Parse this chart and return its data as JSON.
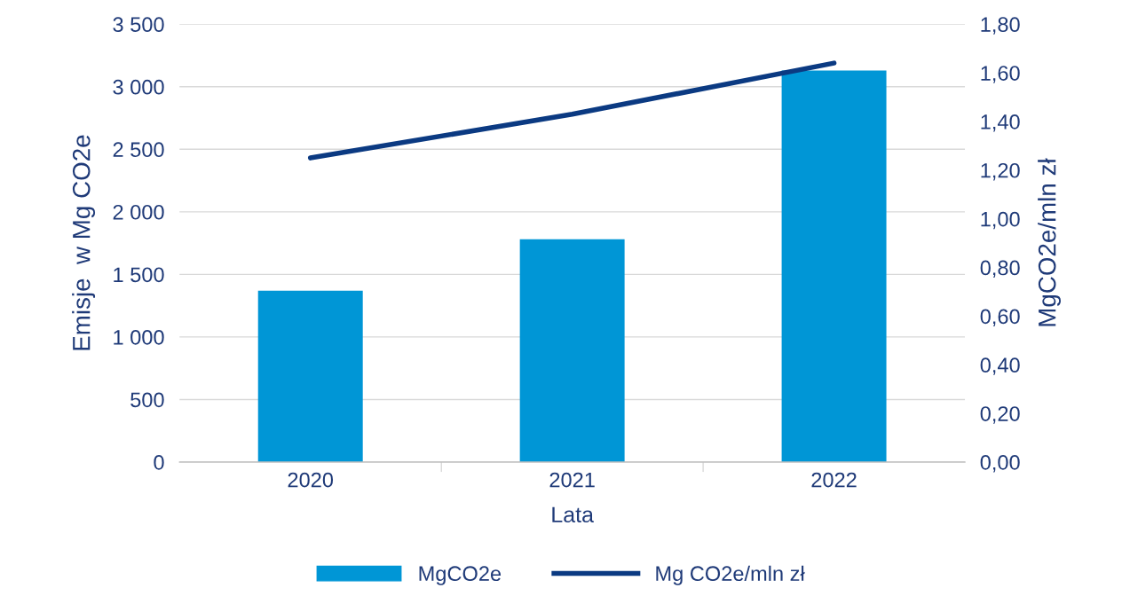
{
  "chart_data": {
    "type": "bar",
    "xlabel": "Lata",
    "ylabel": "Emisje  w Mg CO2e",
    "y2label": "MgCO2e/mln zł",
    "categories": [
      "2020",
      "2021",
      "2022"
    ],
    "series": [
      {
        "name": "MgCO2e",
        "color": "#0096d6",
        "values": [
          1370,
          1780,
          3130
        ]
      },
      {
        "name": "Mg CO2e/mln zł",
        "type": "line",
        "axis": "y2",
        "color": "#0b3a82",
        "values": [
          1.25,
          1.43,
          1.64
        ]
      }
    ],
    "ylim": [
      0,
      3500
    ],
    "yticks": [
      {
        "value": 0,
        "label": "0"
      },
      {
        "value": 500,
        "label": "500"
      },
      {
        "value": 1000,
        "label": "1 000"
      },
      {
        "value": 1500,
        "label": "1 500"
      },
      {
        "value": 2000,
        "label": "2 000"
      },
      {
        "value": 2500,
        "label": "2 500"
      },
      {
        "value": 3000,
        "label": "3 000"
      },
      {
        "value": 3500,
        "label": "3 500"
      }
    ],
    "y2lim": [
      0,
      1.8
    ],
    "y2ticks": [
      {
        "value": 0,
        "label": "0,00"
      },
      {
        "value": 0.2,
        "label": "0,20"
      },
      {
        "value": 0.4,
        "label": "0,40"
      },
      {
        "value": 0.6,
        "label": "0,60"
      },
      {
        "value": 0.8,
        "label": "0,80"
      },
      {
        "value": 1.0,
        "label": "1,00"
      },
      {
        "value": 1.2,
        "label": "1,20"
      },
      {
        "value": 1.4,
        "label": "1,40"
      },
      {
        "value": 1.6,
        "label": "1,60"
      },
      {
        "value": 1.8,
        "label": "1,80"
      }
    ],
    "grid": "y",
    "legend": "bottom",
    "marker": "none",
    "line_style": "solid"
  }
}
